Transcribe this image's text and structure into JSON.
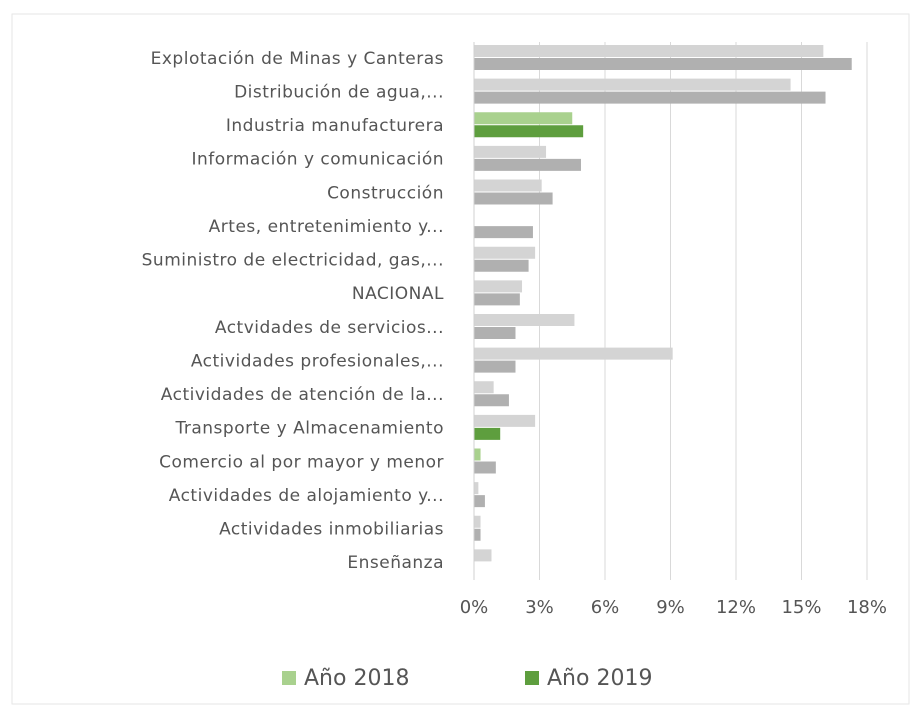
{
  "chart_data": {
    "type": "bar",
    "orientation": "horizontal",
    "categories": [
      "Explotación de Minas y Canteras",
      "Distribución de agua,...",
      "Industria manufacturera",
      "Información y comunicación",
      "Construcción",
      "Artes, entretenimiento y...",
      "Suministro de electricidad, gas,...",
      "NACIONAL",
      "Actvidades de servicios...",
      "Actividades profesionales,...",
      "Actividades de atención de la...",
      "Transporte y Almacenamiento",
      "Comercio al por mayor y menor",
      "Actividades de alojamiento y...",
      "Actividades inmobiliarias",
      "Enseñanza"
    ],
    "series": [
      {
        "name": "Año 2018",
        "color": "#a9d18e",
        "values": [
          16.0,
          14.5,
          4.5,
          3.3,
          3.1,
          0,
          2.8,
          2.2,
          4.6,
          9.1,
          0.9,
          2.8,
          0.3,
          0.2,
          0.3,
          0.8
        ],
        "bar_colors": [
          "#d4d4d4",
          "#d4d4d4",
          "#a9d18e",
          "#d4d4d4",
          "#d4d4d4",
          "#d4d4d4",
          "#d4d4d4",
          "#d4d4d4",
          "#d4d4d4",
          "#d4d4d4",
          "#d4d4d4",
          "#d4d4d4",
          "#a9d18e",
          "#d4d4d4",
          "#d4d4d4",
          "#d4d4d4"
        ]
      },
      {
        "name": "Año 2019",
        "color": "#5e9e3e",
        "values": [
          17.3,
          16.1,
          5.0,
          4.9,
          3.6,
          2.7,
          2.5,
          2.1,
          1.9,
          1.9,
          1.6,
          1.2,
          1.0,
          0.5,
          0.3,
          0
        ],
        "bar_colors": [
          "#b0b0b0",
          "#b0b0b0",
          "#5e9e3e",
          "#b0b0b0",
          "#b0b0b0",
          "#b0b0b0",
          "#b0b0b0",
          "#b0b0b0",
          "#b0b0b0",
          "#b0b0b0",
          "#b0b0b0",
          "#5e9e3e",
          "#b0b0b0",
          "#b0b0b0",
          "#b0b0b0",
          "#b0b0b0"
        ]
      }
    ],
    "xlim": [
      0,
      18
    ],
    "xticks": [
      {
        "value": 0,
        "label": "0%"
      },
      {
        "value": 3,
        "label": "3%"
      },
      {
        "value": 6,
        "label": "6%"
      },
      {
        "value": 9,
        "label": "9%"
      },
      {
        "value": 12,
        "label": "12%"
      },
      {
        "value": 15,
        "label": "15%"
      },
      {
        "value": 18,
        "label": "18%"
      }
    ],
    "grid": true,
    "legend": "bottom"
  }
}
